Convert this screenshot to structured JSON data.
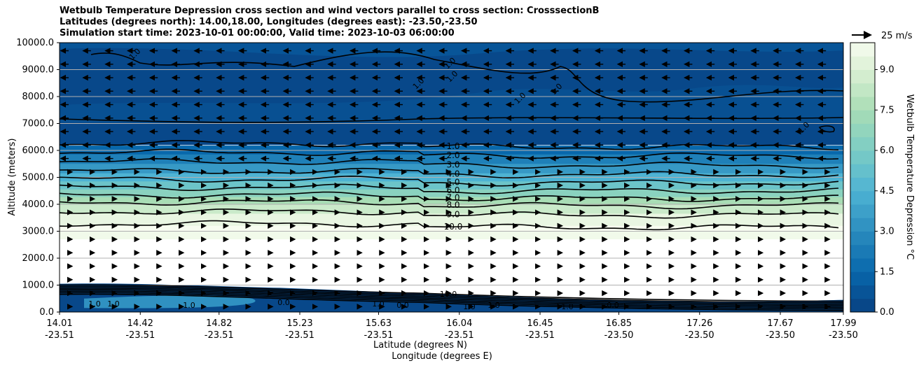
{
  "chart_data": {
    "type": "contourf-cross-section",
    "title_lines": [
      "Wetbulb Temperature Depression cross section and wind vectors parallel to cross section: CrosssectionB",
      "Latitudes (degrees north): 14.00,18.00, Longitudes (degrees east): -23.50,-23.50",
      "Simulation start time: 2023-10-01 00:00:00, Valid time: 2023-10-03 06:00:00"
    ],
    "xlabel_lat": "Latitude (degrees N)",
    "xlabel_lon": "Longitude (degrees E)",
    "ylabel": "Altitude (meters)",
    "ylim": [
      0,
      10000
    ],
    "yticks": [
      "0.0",
      "1000.0",
      "2000.0",
      "3000.0",
      "4000.0",
      "5000.0",
      "6000.0",
      "7000.0",
      "8000.0",
      "9000.0",
      "10000.0"
    ],
    "xlim": [
      14.01,
      17.99
    ],
    "xticks": [
      {
        "lat": "14.01",
        "lon": "-23.51"
      },
      {
        "lat": "14.42",
        "lon": "-23.51"
      },
      {
        "lat": "14.82",
        "lon": "-23.51"
      },
      {
        "lat": "15.23",
        "lon": "-23.51"
      },
      {
        "lat": "15.63",
        "lon": "-23.51"
      },
      {
        "lat": "16.04",
        "lon": "-23.51"
      },
      {
        "lat": "16.45",
        "lon": "-23.51"
      },
      {
        "lat": "16.85",
        "lon": "-23.50"
      },
      {
        "lat": "17.26",
        "lon": "-23.50"
      },
      {
        "lat": "17.67",
        "lon": "-23.50"
      },
      {
        "lat": "17.99",
        "lon": "-23.50"
      }
    ],
    "grid_y": true,
    "colorbar": {
      "label": "Wetbulb Temperature Depression °C",
      "range": [
        0,
        10
      ],
      "ticks": [
        "0.0",
        "1.5",
        "3.0",
        "4.5",
        "6.0",
        "7.5",
        "9.0"
      ],
      "cmap": "GnBu_r"
    },
    "quiver_key": "25 m/s",
    "contour_levels": [
      {
        "value": 1.0,
        "label": "1.0",
        "height": 6180
      },
      {
        "value": 2.0,
        "label": "2.0",
        "height": 5850
      },
      {
        "value": 3.0,
        "label": "3.0",
        "height": 5500
      },
      {
        "value": 4.0,
        "label": "4.0",
        "height": 5150
      },
      {
        "value": 5.0,
        "label": "5.0",
        "height": 4850
      },
      {
        "value": 6.0,
        "label": "6.0",
        "height": 4550
      },
      {
        "value": 7.0,
        "label": "7.0",
        "height": 4270
      },
      {
        "value": 8.0,
        "label": "8.0",
        "height": 4000
      },
      {
        "value": 9.0,
        "label": "9.0",
        "height": 3650
      },
      {
        "value": 10.0,
        "label": "10.0",
        "height": 3200
      }
    ],
    "upper_contour_labels": [
      "1.0",
      "1.0",
      "1.0",
      "1.0",
      "1.0",
      "1.0",
      "1.0"
    ],
    "lower_contour_labels": [
      "1.0",
      "1.0",
      "1.0",
      "0.0",
      "1.0",
      "0.0",
      "1.0",
      "1.0",
      "1.0",
      "0.0",
      "10.0"
    ],
    "wind_direction_by_layer": [
      {
        "bottom": 0,
        "top": 5600,
        "direction": "south-to-north"
      },
      {
        "bottom": 5600,
        "top": 10000,
        "direction": "north-to-south"
      }
    ]
  }
}
